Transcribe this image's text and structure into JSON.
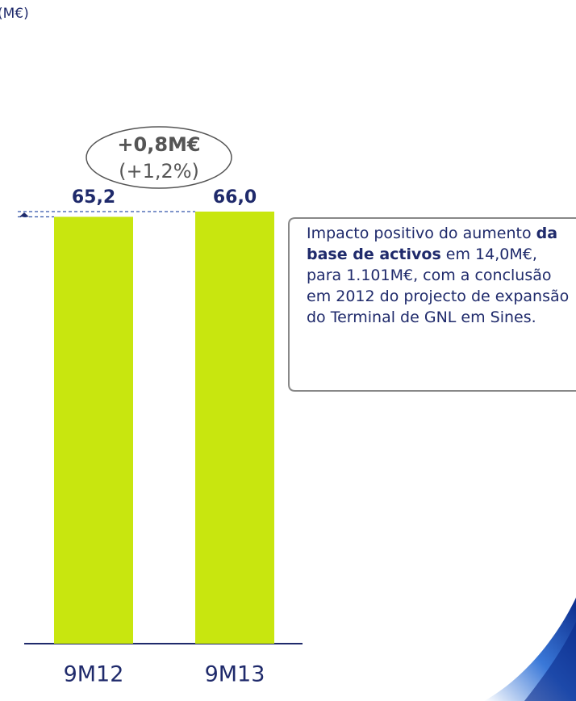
{
  "chart_data": {
    "type": "bar",
    "unit_label": "(M€)",
    "categories": [
      "9M12",
      "9M13"
    ],
    "values": [
      65.2,
      66.0
    ],
    "value_labels": [
      "65,2",
      "66,0"
    ],
    "color": "#c8e60f",
    "annotation": {
      "change": "+0,8M€",
      "percent": "(+1,2%)"
    },
    "note": [
      "Impacto positivo do aumento ",
      "da base de activos",
      " em 14,0M€, para 1.101M€, com a conclusão em 2012 do projecto de expansão do Terminal de GNL em Sines."
    ]
  }
}
